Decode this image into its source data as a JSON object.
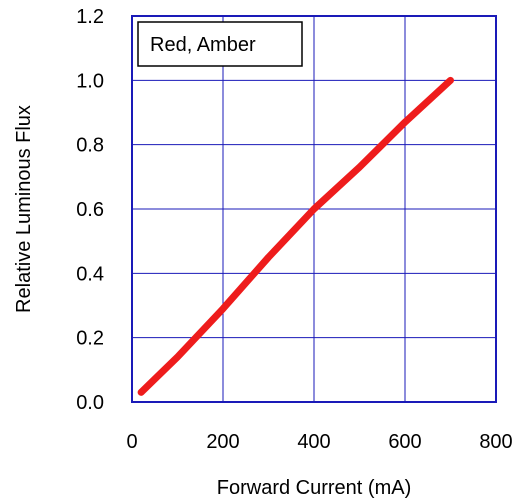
{
  "chart_data": {
    "type": "line",
    "xlabel": "Forward Current (mA)",
    "ylabel": "Relative Luminous Flux",
    "xlim": [
      0,
      800
    ],
    "ylim": [
      0,
      1.2
    ],
    "x_ticks": [
      "0",
      "200",
      "400",
      "600",
      "800"
    ],
    "y_ticks": [
      "0.0",
      "0.2",
      "0.4",
      "0.6",
      "0.8",
      "1.0",
      "1.2"
    ],
    "grid": true,
    "legend_position": "top-left",
    "series": [
      {
        "name": "Red, Amber",
        "color": "#ee1c1c",
        "x": [
          20,
          100,
          200,
          300,
          400,
          500,
          600,
          700
        ],
        "y": [
          0.03,
          0.14,
          0.29,
          0.45,
          0.6,
          0.73,
          0.87,
          1.0
        ]
      }
    ],
    "colors": {
      "frame": "#1a1ab8",
      "grid": "#1a1ab8"
    }
  }
}
